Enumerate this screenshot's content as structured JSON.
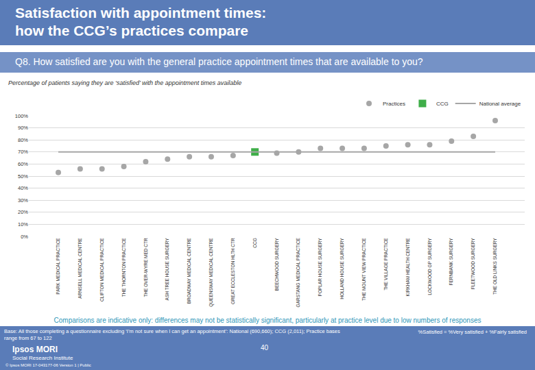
{
  "slide": {
    "title_lines": [
      "Satisfaction with appointment times:",
      "how the CCG’s practices compare"
    ],
    "question": "Q8. How satisfied are you with the general practice appointment times that are available to you?",
    "note": "Comparisons are indicative only: differences may not be statistically significant, particularly at practice level due to low numbers of responses",
    "base": "Base: All those completing a questionnaire excluding ‘I’m not sure when I can get an appointment’: National (690,660); CCG (2,011); Practice bases range from 67 to 122",
    "definition": "%Satisfied = %Very satisfied + %Fairly satisfied",
    "brand": "Ipsos MORI",
    "brand_sub": "Social Research Institute",
    "page": "40",
    "footer": "© Ipsos MORI     17-043177-06 Version 1 | Public"
  },
  "chart_data": {
    "type": "scatter",
    "subtitle": "Percentage of patients saying they are ‘satisfied’ with the appointment times available",
    "categories": [
      "PARK MEDICAL PRACTICE",
      "ARNSELL MEDICAL CENTRE",
      "CLIFTON MEDICAL PRACTICE",
      "THE THORNTON PRACTICE",
      "THE OVER-WYRE MED CTR",
      "ASH TREE HOUSE SURGERY",
      "BROADWAY MEDICAL CENTRE",
      "QUEENSWAY MEDICAL CENTRE",
      "GREAT ECCLESTON HLTH CTR",
      "CCG",
      "BEECHWOOD SURGERY",
      "GARSTANG MEDICAL PRACTICE",
      "POPLAR HOUSE SURGERY",
      "HOLLAND HOUSE SURGERY",
      "THE MOUNT VIEW PRACTICE",
      "THE VILLAGE PRACTICE",
      "KIRKHAM HEALTH CENTRE",
      "LOCKWOOD GP SURGERY",
      "FERNBANK SURGERY",
      "FLEETWOOD SURGERY",
      "THE OLD LINKS SURGERY"
    ],
    "series": [
      {
        "name": "Practices",
        "color": "#a6a6a6",
        "marker": "circle",
        "values": [
          53,
          56,
          56,
          58,
          62,
          64,
          66,
          66,
          67,
          null,
          69,
          70,
          73,
          73,
          73,
          75,
          76,
          76,
          79,
          83,
          96
        ]
      },
      {
        "name": "CCG",
        "color": "#3fae49",
        "marker": "square",
        "values": [
          null,
          null,
          null,
          null,
          null,
          null,
          null,
          null,
          null,
          70,
          null,
          null,
          null,
          null,
          null,
          null,
          null,
          null,
          null,
          null,
          null
        ]
      },
      {
        "name": "National average",
        "color": "#a6a6a6",
        "line_style": "solid",
        "values": [
          70,
          70,
          70,
          70,
          70,
          70,
          70,
          70,
          70,
          70,
          70,
          70,
          70,
          70,
          70,
          70,
          70,
          70,
          70,
          70,
          70
        ]
      }
    ],
    "ylim": [
      0,
      100
    ],
    "yticks": [
      {
        "value": 0,
        "label": "0%"
      },
      {
        "value": 10,
        "label": "10%"
      },
      {
        "value": 20,
        "label": "20%"
      },
      {
        "value": 30,
        "label": "30%"
      },
      {
        "value": 40,
        "label": "40%"
      },
      {
        "value": 50,
        "label": "50%"
      },
      {
        "value": 60,
        "label": "60%"
      },
      {
        "value": 70,
        "label": "70%"
      },
      {
        "value": 80,
        "label": "80%"
      },
      {
        "value": 90,
        "label": "90%"
      },
      {
        "value": 100,
        "label": "100%"
      }
    ],
    "grid": true,
    "legend": "top right"
  }
}
